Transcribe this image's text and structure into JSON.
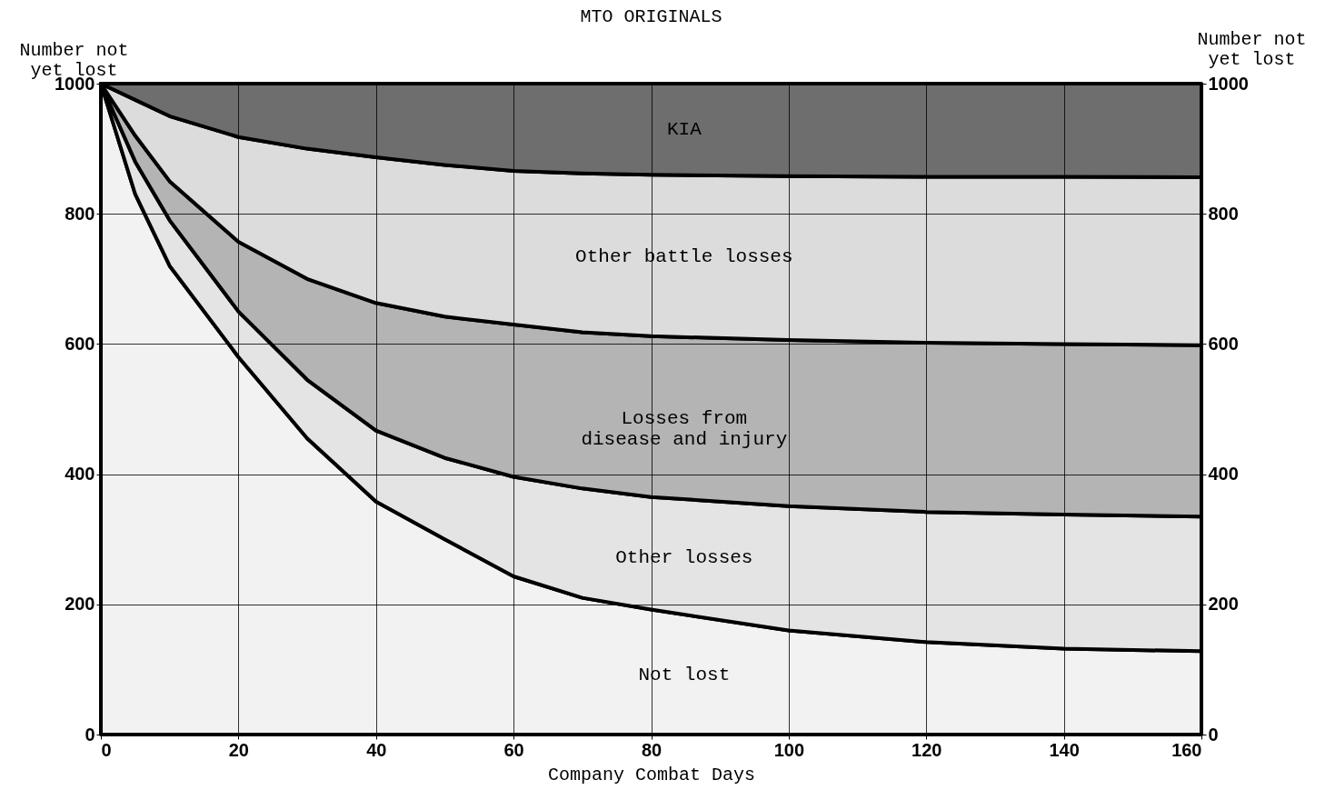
{
  "chart_data": {
    "type": "area",
    "stacked": true,
    "title": "MTO ORIGINALS",
    "xlabel": "Company Combat Days",
    "ylabel": "Number not\nyet lost",
    "y2label": "Number not\nyet lost",
    "x": [
      0,
      5,
      10,
      20,
      30,
      40,
      50,
      60,
      70,
      80,
      100,
      120,
      140,
      160
    ],
    "series": [
      {
        "name": "Not lost",
        "color": "#f2f2f2",
        "values": [
          1000,
          830,
          720,
          580,
          455,
          358,
          300,
          243,
          210,
          192,
          160,
          142,
          132,
          128
        ]
      },
      {
        "name": "Other losses",
        "color": "#e4e4e4",
        "values": [
          0,
          50,
          70,
          70,
          90,
          109,
          125,
          153,
          168,
          173,
          191,
          200,
          206,
          207
        ]
      },
      {
        "name": "Losses from\ndisease and injury",
        "color": "#b4b4b4",
        "values": [
          0,
          40,
          60,
          107,
          155,
          196,
          217,
          234,
          240,
          247,
          255,
          260,
          262,
          263
        ]
      },
      {
        "name": "Other battle losses",
        "color": "#dcdcdc",
        "values": [
          0,
          55,
          100,
          161,
          200,
          224,
          233,
          236,
          244,
          248,
          252,
          255,
          257,
          258
        ]
      },
      {
        "name": "KIA",
        "color": "#6e6e6e",
        "values": [
          0,
          25,
          50,
          82,
          100,
          113,
          125,
          134,
          138,
          140,
          142,
          143,
          143,
          144
        ]
      }
    ],
    "xlim": [
      0,
      160
    ],
    "xticks": [
      0,
      20,
      40,
      60,
      80,
      100,
      120,
      140,
      160
    ],
    "ylim": [
      0,
      1000
    ],
    "yticks": [
      0,
      200,
      400,
      600,
      800,
      1000
    ],
    "y2lim": [
      0,
      1000
    ],
    "y2ticks": [
      0,
      200,
      400,
      600,
      800,
      1000
    ],
    "grid": true,
    "legend": false,
    "line_style": "solid"
  }
}
